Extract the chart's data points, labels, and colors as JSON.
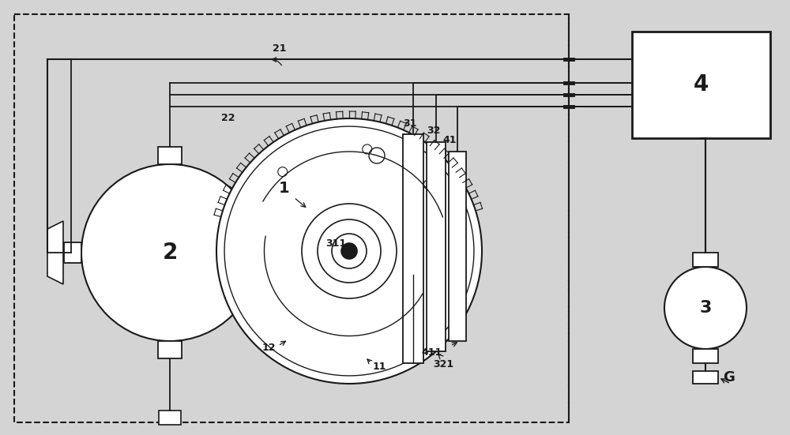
{
  "bg_color": "#d4d4d4",
  "fg_color": "#1a1a1a",
  "white": "#ffffff",
  "figsize": [
    10.0,
    5.51
  ],
  "dpi": 100,
  "lw": 1.4
}
